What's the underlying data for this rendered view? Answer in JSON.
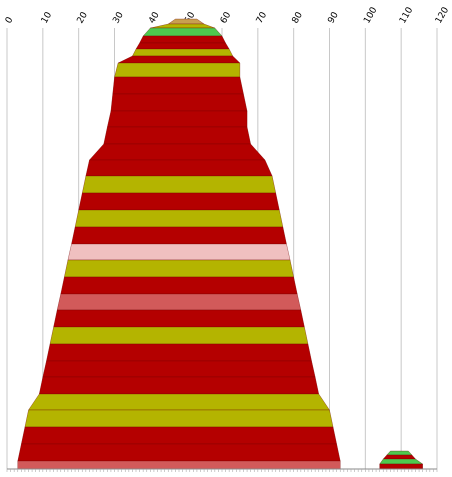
{
  "chart_data": {
    "type": "area",
    "title": "",
    "xlabel": "",
    "ylabel": "",
    "xlim": [
      0,
      120
    ],
    "xticks": [
      0,
      10,
      20,
      30,
      40,
      50,
      60,
      70,
      80,
      90,
      100,
      110,
      120
    ],
    "grid": true,
    "colors": {
      "olive": "#b4b400",
      "red": "#b40000",
      "pink": "#f0c0c0",
      "salmon": "#d25a5a",
      "green": "#4ec94e",
      "tan": "#c8a050"
    },
    "series": [
      {
        "bands": [
          {
            "left": 47,
            "right": 53,
            "color": "tan"
          },
          {
            "left": 45,
            "right": 55,
            "color": "olive"
          },
          {
            "left": 40,
            "right": 58,
            "color": "green"
          },
          {
            "left": 38,
            "right": 60,
            "color": "red"
          },
          {
            "left": 37,
            "right": 61,
            "color": "red"
          },
          {
            "left": 36,
            "right": 62,
            "color": "olive"
          },
          {
            "left": 35,
            "right": 63,
            "color": "red"
          },
          {
            "left": 31,
            "right": 65,
            "color": "olive"
          },
          {
            "left": 30,
            "right": 65,
            "color": "red"
          },
          {
            "left": 29.5,
            "right": 66,
            "color": "red"
          },
          {
            "left": 29,
            "right": 67,
            "color": "red"
          },
          {
            "left": 28,
            "right": 67,
            "color": "red"
          },
          {
            "left": 27,
            "right": 68,
            "color": "red"
          },
          {
            "left": 23,
            "right": 72,
            "color": "red"
          },
          {
            "left": 22,
            "right": 74,
            "color": "olive"
          },
          {
            "left": 21,
            "right": 75,
            "color": "red"
          },
          {
            "left": 20,
            "right": 76,
            "color": "olive"
          },
          {
            "left": 19,
            "right": 77,
            "color": "red"
          },
          {
            "left": 18,
            "right": 78,
            "color": "pink"
          },
          {
            "left": 17,
            "right": 79,
            "color": "olive"
          },
          {
            "left": 16,
            "right": 80,
            "color": "red"
          },
          {
            "left": 15,
            "right": 81,
            "color": "salmon"
          },
          {
            "left": 14,
            "right": 82,
            "color": "red"
          },
          {
            "left": 13,
            "right": 83,
            "color": "olive"
          },
          {
            "left": 12,
            "right": 84,
            "color": "red"
          },
          {
            "left": 11,
            "right": 85,
            "color": "red"
          },
          {
            "left": 10,
            "right": 86,
            "color": "red"
          },
          {
            "left": 9,
            "right": 87,
            "color": "olive"
          },
          {
            "left": 6,
            "right": 90,
            "color": "olive"
          },
          {
            "left": 5,
            "right": 91,
            "color": "red"
          },
          {
            "left": 4,
            "right": 92,
            "color": "red"
          },
          {
            "left": 3,
            "right": 93,
            "color": "salmon"
          }
        ]
      },
      {
        "bands": [
          {
            "left": 107,
            "right": 112,
            "color": "green"
          },
          {
            "left": 106,
            "right": 113,
            "color": "red"
          },
          {
            "left": 105,
            "right": 114,
            "color": "green"
          },
          {
            "left": 104,
            "right": 116,
            "color": "red"
          }
        ]
      }
    ]
  }
}
